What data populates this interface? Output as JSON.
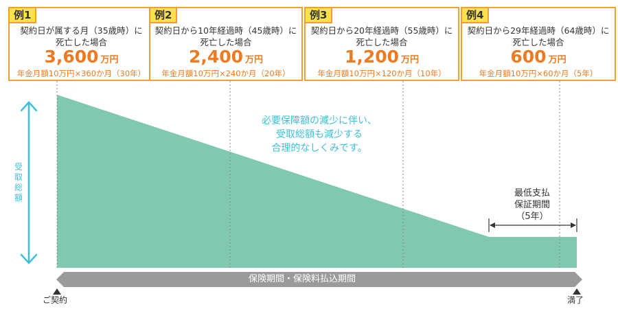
{
  "examples": [
    {
      "tag": "例1",
      "condition_line1": "契約日が属する月（35歳時）に",
      "condition_line2": "死亡した場合",
      "amount": "3,600",
      "unit": "万円",
      "calc": "年金月額10万円×360か月（30年）"
    },
    {
      "tag": "例2",
      "condition_line1": "契約日から10年経過時（45歳時）に",
      "condition_line2": "死亡した場合",
      "amount": "2,400",
      "unit": "万円",
      "calc": "年金月額10万円×240か月（20年）"
    },
    {
      "tag": "例3",
      "condition_line1": "契約日から20年経過時（55歳時）に",
      "condition_line2": "死亡した場合",
      "amount": "1,200",
      "unit": "万円",
      "calc": "年金月額10万円×120か月（10年）"
    },
    {
      "tag": "例4",
      "condition_line1": "契約日から29年経過時（64歳時）に",
      "condition_line2": "死亡した場合",
      "amount": "600",
      "unit": "万円",
      "calc": "年金月額10万円×60か月（5年）"
    }
  ],
  "notice": {
    "line1": "必要保障額の減少に伴い、",
    "line2": "受取総額も減少する",
    "line3": "合理的なしくみです。"
  },
  "y_axis_label": [
    "受",
    "取",
    "総",
    "額"
  ],
  "minimum_guarantee": {
    "line1": "最低支払",
    "line2": "保証期間",
    "line3": "（5年）"
  },
  "period_banner": "保険期間・保険料払込期間",
  "start_label": "ご契約",
  "end_label": "満了",
  "colors": {
    "area": "#80c8b0",
    "accent_orange": "#ee7a22",
    "box_border": "#f0a032",
    "tag_fill": "#fbe14b",
    "axis_blue": "#3dbfd8",
    "banner_gray": "#9a9a9a"
  }
}
